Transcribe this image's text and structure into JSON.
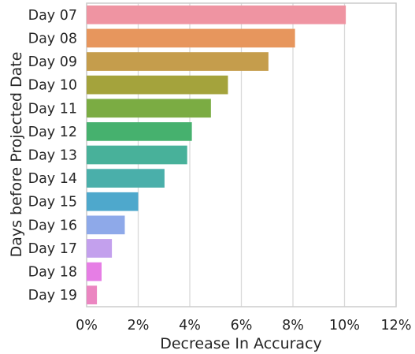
{
  "chart_data": {
    "type": "bar",
    "orientation": "horizontal",
    "categories": [
      "Day 07",
      "Day 08",
      "Day 09",
      "Day 10",
      "Day 11",
      "Day 12",
      "Day 13",
      "Day 14",
      "Day 15",
      "Day 16",
      "Day 17",
      "Day 18",
      "Day 19"
    ],
    "values": [
      10.05,
      8.08,
      7.05,
      5.48,
      4.82,
      4.08,
      3.9,
      3.02,
      2.0,
      1.48,
      0.98,
      0.58,
      0.4
    ],
    "colors": [
      "#ef94a2",
      "#e7965d",
      "#c59d4c",
      "#a4a33c",
      "#7bac43",
      "#46b16e",
      "#48b19a",
      "#4aafaa",
      "#4ea8cc",
      "#8ea9e9",
      "#c3a0ed",
      "#e67ee5",
      "#eb86c1"
    ],
    "xlabel": "Decrease In Accuracy",
    "ylabel": "Days before Projected Date",
    "xlim": [
      0,
      12
    ],
    "xticks": [
      "0%",
      "2%",
      "4%",
      "6%",
      "8%",
      "10%",
      "12%"
    ],
    "grid": true
  }
}
